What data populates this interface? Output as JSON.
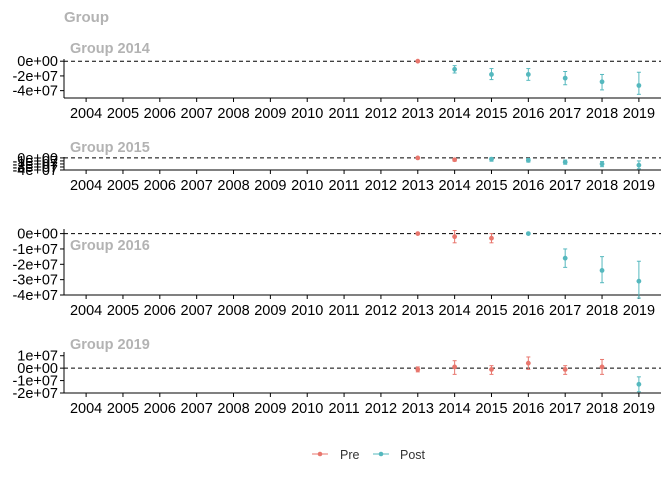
{
  "figure_title": "Group",
  "colors": {
    "pre": "#e8766d",
    "post": "#55b8be",
    "axis": "#000000",
    "title": "#b3b3b3"
  },
  "legend": {
    "placement": "bottom",
    "entries": [
      {
        "key": "pre",
        "label": "Pre"
      },
      {
        "key": "post",
        "label": "Post"
      }
    ]
  },
  "chart_data": [
    {
      "type": "scatter",
      "title": "Group 2014",
      "x_ticks": [
        "2004",
        "2005",
        "2006",
        "2007",
        "2008",
        "2009",
        "2010",
        "2011",
        "2012",
        "2013",
        "2014",
        "2015",
        "2016",
        "2017",
        "2018",
        "2019"
      ],
      "y_ticks": [
        0,
        -20000000,
        -40000000
      ],
      "y_tick_labels": [
        "0e+00",
        "-2e+07",
        "-4e+07"
      ],
      "ylim": [
        -50000000,
        3000000
      ],
      "reference_line": 0,
      "series": [
        {
          "key": "pre",
          "points": [
            {
              "x": 2013,
              "y": 0,
              "lo": 0,
              "hi": 0
            }
          ]
        },
        {
          "key": "post",
          "points": [
            {
              "x": 2014,
              "y": -11000000,
              "lo": -16000000,
              "hi": -6000000
            },
            {
              "x": 2015,
              "y": -18000000,
              "lo": -25000000,
              "hi": -10000000
            },
            {
              "x": 2016,
              "y": -18000000,
              "lo": -26000000,
              "hi": -10000000
            },
            {
              "x": 2017,
              "y": -23000000,
              "lo": -32000000,
              "hi": -14000000
            },
            {
              "x": 2018,
              "y": -28000000,
              "lo": -39000000,
              "hi": -18000000
            },
            {
              "x": 2019,
              "y": -33000000,
              "lo": -45000000,
              "hi": -15000000
            }
          ]
        }
      ]
    },
    {
      "type": "scatter",
      "title": "Group 2015",
      "x_ticks": [
        "2004",
        "2005",
        "2006",
        "2007",
        "2008",
        "2009",
        "2010",
        "2011",
        "2012",
        "2013",
        "2014",
        "2015",
        "2016",
        "2017",
        "2018",
        "2019"
      ],
      "y_ticks": [
        0,
        -10000000,
        -20000000,
        -30000000,
        -40000000
      ],
      "y_tick_labels": [
        "0e+00",
        "-1e+07",
        "-2e+07",
        "-3e+07",
        "-4e+07"
      ],
      "ylim": [
        -40000000,
        3000000
      ],
      "reference_line": 0,
      "series": [
        {
          "key": "pre",
          "points": [
            {
              "x": 2013,
              "y": 0,
              "lo": 0,
              "hi": 0
            },
            {
              "x": 2014,
              "y": -6000000,
              "lo": -11000000,
              "hi": -2000000
            }
          ]
        },
        {
          "key": "post",
          "points": [
            {
              "x": 2015,
              "y": -4000000,
              "lo": -11000000,
              "hi": 1000000
            },
            {
              "x": 2016,
              "y": -8000000,
              "lo": -14000000,
              "hi": -2000000
            },
            {
              "x": 2017,
              "y": -14000000,
              "lo": -21000000,
              "hi": -7000000
            },
            {
              "x": 2018,
              "y": -20000000,
              "lo": -29000000,
              "hi": -12000000
            },
            {
              "x": 2019,
              "y": -24000000,
              "lo": -36000000,
              "hi": -10000000
            }
          ]
        }
      ]
    },
    {
      "type": "scatter",
      "title": "Group 2016",
      "x_ticks": [
        "2004",
        "2005",
        "2006",
        "2007",
        "2008",
        "2009",
        "2010",
        "2011",
        "2012",
        "2013",
        "2014",
        "2015",
        "2016",
        "2017",
        "2018",
        "2019"
      ],
      "y_ticks": [
        0,
        -10000000,
        -20000000,
        -30000000,
        -40000000
      ],
      "y_tick_labels": [
        "0e+00",
        "-1e+07",
        "-2e+07",
        "-3e+07",
        "-4e+07"
      ],
      "ylim": [
        -40000000,
        3000000
      ],
      "reference_line": 0,
      "series": [
        {
          "key": "pre",
          "points": [
            {
              "x": 2013,
              "y": 0,
              "lo": 0,
              "hi": 0
            },
            {
              "x": 2014,
              "y": -2000000,
              "lo": -6000000,
              "hi": 2000000
            },
            {
              "x": 2015,
              "y": -3000000,
              "lo": -6000000,
              "hi": 0
            }
          ]
        },
        {
          "key": "post",
          "points": [
            {
              "x": 2016,
              "y": 0,
              "lo": 0,
              "hi": 0
            },
            {
              "x": 2017,
              "y": -16000000,
              "lo": -22000000,
              "hi": -10000000
            },
            {
              "x": 2018,
              "y": -24000000,
              "lo": -32000000,
              "hi": -15000000
            },
            {
              "x": 2019,
              "y": -31000000,
              "lo": -42000000,
              "hi": -18000000
            }
          ]
        }
      ]
    },
    {
      "type": "scatter",
      "title": "Group 2019",
      "x_ticks": [
        "2004",
        "2005",
        "2006",
        "2007",
        "2008",
        "2009",
        "2010",
        "2011",
        "2012",
        "2013",
        "2014",
        "2015",
        "2016",
        "2017",
        "2018",
        "2019"
      ],
      "y_ticks": [
        10000000,
        0,
        -10000000,
        -20000000
      ],
      "y_tick_labels": [
        "1e+07",
        "0e+00",
        "-1e+07",
        "-2e+07"
      ],
      "ylim": [
        -20000000,
        13000000
      ],
      "reference_line": 0,
      "series": [
        {
          "key": "pre",
          "points": [
            {
              "x": 2013,
              "y": -1000000,
              "lo": -3000000,
              "hi": 1000000
            },
            {
              "x": 2014,
              "y": 1000000,
              "lo": -5000000,
              "hi": 6000000
            },
            {
              "x": 2015,
              "y": -1000000,
              "lo": -5000000,
              "hi": 2000000
            },
            {
              "x": 2016,
              "y": 4000000,
              "lo": -1000000,
              "hi": 9000000
            },
            {
              "x": 2017,
              "y": -1000000,
              "lo": -5000000,
              "hi": 2000000
            },
            {
              "x": 2018,
              "y": 1000000,
              "lo": -5000000,
              "hi": 7000000
            }
          ]
        },
        {
          "key": "post",
          "points": [
            {
              "x": 2019,
              "y": -13000000,
              "lo": -19000000,
              "hi": -7000000
            }
          ]
        }
      ]
    }
  ]
}
